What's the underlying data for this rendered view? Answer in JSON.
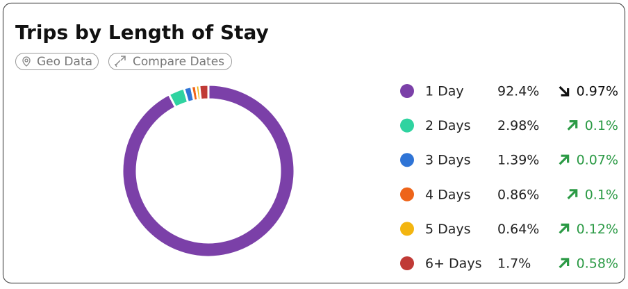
{
  "chart_data": {
    "type": "pie",
    "title": "Trips by Length of Stay",
    "buttons": [
      "Geo Data",
      "Compare Dates"
    ],
    "categories": [
      "1 Day",
      "2 Days",
      "3 Days",
      "4 Days",
      "5 Days",
      "6+ Days"
    ],
    "values": [
      92.4,
      2.98,
      1.39,
      0.86,
      0.64,
      1.7
    ],
    "value_labels": [
      "92.4%",
      "2.98%",
      "1.39%",
      "0.86%",
      "0.64%",
      "1.7%"
    ],
    "colors": [
      "#7b40a8",
      "#2fd3a0",
      "#2f74d6",
      "#ee6419",
      "#f3b510",
      "#c03a36"
    ],
    "changes": {
      "values": [
        0.97,
        0.1,
        0.07,
        0.1,
        0.12,
        0.58
      ],
      "labels": [
        "0.97%",
        "0.1%",
        "0.07%",
        "0.1%",
        "0.12%",
        "0.58%"
      ],
      "direction": [
        "down",
        "up",
        "up",
        "up",
        "up",
        "up"
      ]
    }
  }
}
